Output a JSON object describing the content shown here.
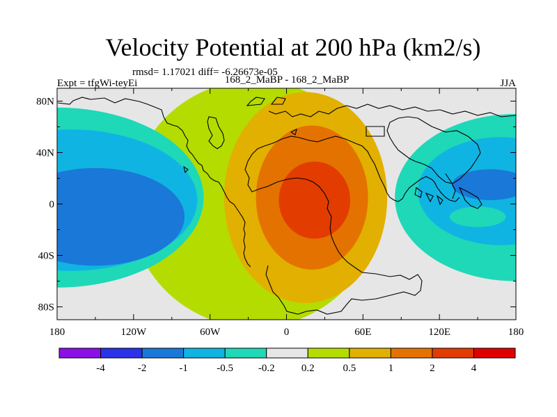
{
  "chart_data": {
    "type": "contour-map",
    "title": "Velocity Potential at 200 hPa (km2/s)",
    "stats": "rmsd= 1.17021 diff= -6.26673e-05",
    "left_label": "Expt = tfgWi-teyEi",
    "center_label": "168_2_MaBP - 168_2_MaBP",
    "right_label": "JJA",
    "lon_range": [
      -180,
      180
    ],
    "lat_range": [
      -90,
      90
    ],
    "x_ticks": [
      {
        "value": -180,
        "label": "180"
      },
      {
        "value": -120,
        "label": "120W"
      },
      {
        "value": -60,
        "label": "60W"
      },
      {
        "value": 0,
        "label": "0"
      },
      {
        "value": 60,
        "label": "60E"
      },
      {
        "value": 120,
        "label": "120E"
      },
      {
        "value": 180,
        "label": "180"
      }
    ],
    "y_ticks": [
      {
        "value": 80,
        "label": "80N"
      },
      {
        "value": 40,
        "label": "40N"
      },
      {
        "value": 0,
        "label": "0"
      },
      {
        "value": -40,
        "label": "40S"
      },
      {
        "value": -80,
        "label": "80S"
      }
    ],
    "levels": [
      "-4",
      "-2",
      "-1",
      "-0.5",
      "-0.2",
      "0.2",
      "0.5",
      "1",
      "2",
      "4"
    ],
    "colors": [
      "#8b10e8",
      "#2c32e8",
      "#1a78d8",
      "#10b4e2",
      "#1ed8b8",
      "#e6e6e6",
      "#b4dc00",
      "#e2b000",
      "#e47200",
      "#e23c00",
      "#e00000"
    ],
    "regions": [
      {
        "level": 6,
        "lon": -25,
        "lat": 0,
        "rlon": 98,
        "rlat": 96
      },
      {
        "level": 7,
        "lon": 15,
        "lat": 5,
        "rlon": 64,
        "rlat": 82
      },
      {
        "level": 8,
        "lon": 20,
        "lat": 5,
        "rlon": 44,
        "rlat": 56
      },
      {
        "level": 9,
        "lon": 22,
        "lat": 3,
        "rlon": 28,
        "rlat": 30
      },
      {
        "level": 4,
        "lon": -180,
        "lat": 5,
        "rlon": 115,
        "rlat": 70
      },
      {
        "level": 3,
        "lon": -170,
        "lat": 3,
        "rlon": 100,
        "rlat": 55
      },
      {
        "level": 2,
        "lon": -150,
        "lat": -10,
        "rlon": 70,
        "rlat": 38
      },
      {
        "level": 4,
        "lon": 180,
        "lat": 5,
        "rlon": 95,
        "rlat": 65
      },
      {
        "level": 3,
        "lon": 168,
        "lat": 10,
        "rlon": 65,
        "rlat": 42
      },
      {
        "level": 2,
        "lon": 160,
        "lat": 15,
        "rlon": 30,
        "rlat": 12
      },
      {
        "level": 4,
        "lon": 150,
        "lat": -10,
        "rlon": 22,
        "rlat": 8
      }
    ]
  }
}
